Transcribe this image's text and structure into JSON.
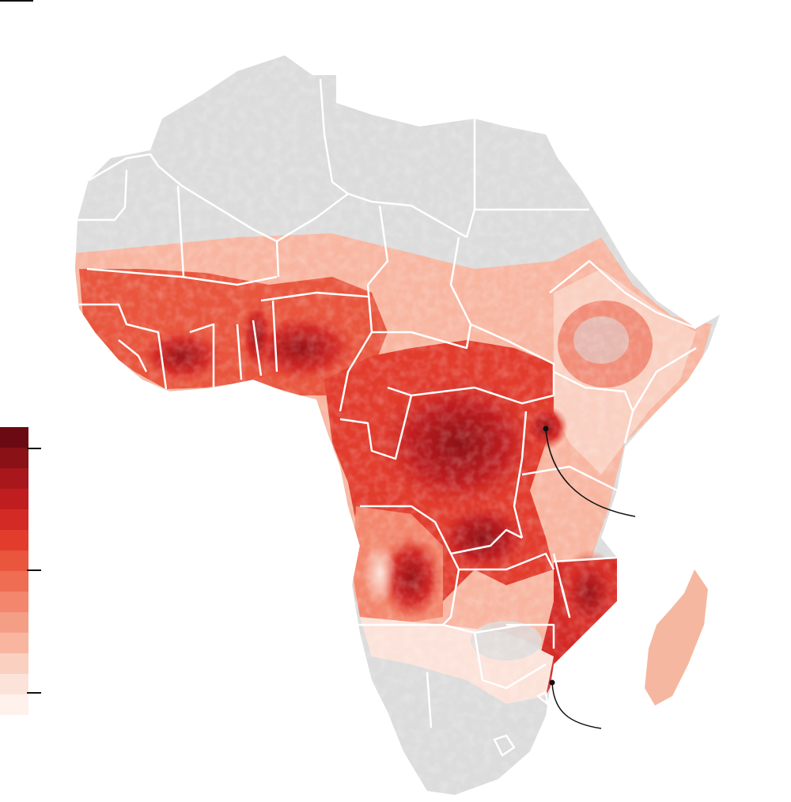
{
  "map": {
    "land_color": "#dcdcdc",
    "border_color": "#ffffff",
    "ramp_colors": [
      "#6b0a12",
      "#8a1116",
      "#a8171c",
      "#c01d20",
      "#d42a26",
      "#e23c2d",
      "#e9553d",
      "#ef6e53",
      "#f3866c",
      "#f59e86",
      "#f8b6a1",
      "#fad0c1",
      "#fce3da",
      "#fff1ec"
    ],
    "legend_ticks": [
      {
        "label": ""
      },
      {
        "label": ""
      },
      {
        "label": ""
      }
    ],
    "callouts": [
      {
        "name": "east-africa-callout"
      },
      {
        "name": "mozambique-callout"
      }
    ]
  }
}
